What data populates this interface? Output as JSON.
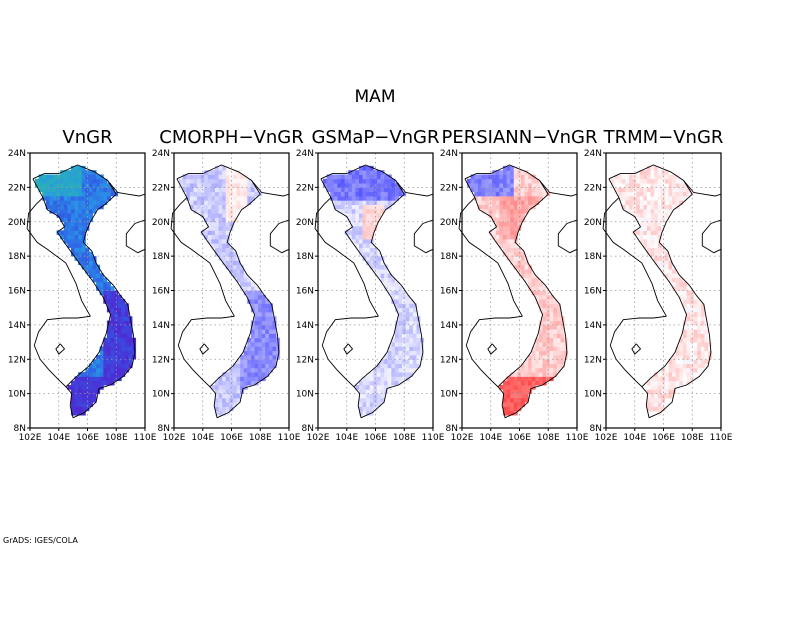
{
  "figure": {
    "season_title": "MAM",
    "footer": "GrADS: IGES/COLA"
  },
  "chart_data": [
    {
      "type": "heatmap",
      "title": "VnGR",
      "colormap": "precipitation",
      "lat_ticks": [
        "8N",
        "10N",
        "12N",
        "14N",
        "16N",
        "18N",
        "20N",
        "22N",
        "24N"
      ],
      "lon_ticks": [
        "102E",
        "104E",
        "106E",
        "108E",
        "110E"
      ],
      "xlim": [
        102,
        110
      ],
      "ylim": [
        8,
        24
      ],
      "grid": true
    },
    {
      "type": "heatmap",
      "title": "CMORPH−VnGR",
      "colormap": "difference",
      "lat_ticks": [
        "8N",
        "10N",
        "12N",
        "14N",
        "16N",
        "18N",
        "20N",
        "22N",
        "24N"
      ],
      "lon_ticks": [
        "102E",
        "104E",
        "106E",
        "108E",
        "110E"
      ],
      "xlim": [
        102,
        110
      ],
      "ylim": [
        8,
        24
      ],
      "grid": true
    },
    {
      "type": "heatmap",
      "title": "GSMaP−VnGR",
      "colormap": "difference",
      "lat_ticks": [
        "8N",
        "10N",
        "12N",
        "14N",
        "16N",
        "18N",
        "20N",
        "22N",
        "24N"
      ],
      "lon_ticks": [
        "102E",
        "104E",
        "106E",
        "108E",
        "110E"
      ],
      "xlim": [
        102,
        110
      ],
      "ylim": [
        8,
        24
      ],
      "grid": true
    },
    {
      "type": "heatmap",
      "title": "PERSIANN−VnGR",
      "colormap": "difference",
      "lat_ticks": [
        "8N",
        "10N",
        "12N",
        "14N",
        "16N",
        "18N",
        "20N",
        "22N",
        "24N"
      ],
      "lon_ticks": [
        "102E",
        "104E",
        "106E",
        "108E",
        "110E"
      ],
      "xlim": [
        102,
        110
      ],
      "ylim": [
        8,
        24
      ],
      "grid": true
    },
    {
      "type": "heatmap",
      "title": "TRMM−VnGR",
      "colormap": "difference",
      "lat_ticks": [
        "8N",
        "10N",
        "12N",
        "14N",
        "16N",
        "18N",
        "20N",
        "22N",
        "24N"
      ],
      "lon_ticks": [
        "102E",
        "104E",
        "106E",
        "108E",
        "110E"
      ],
      "xlim": [
        102,
        110
      ],
      "ylim": [
        8,
        24
      ],
      "grid": true
    }
  ]
}
